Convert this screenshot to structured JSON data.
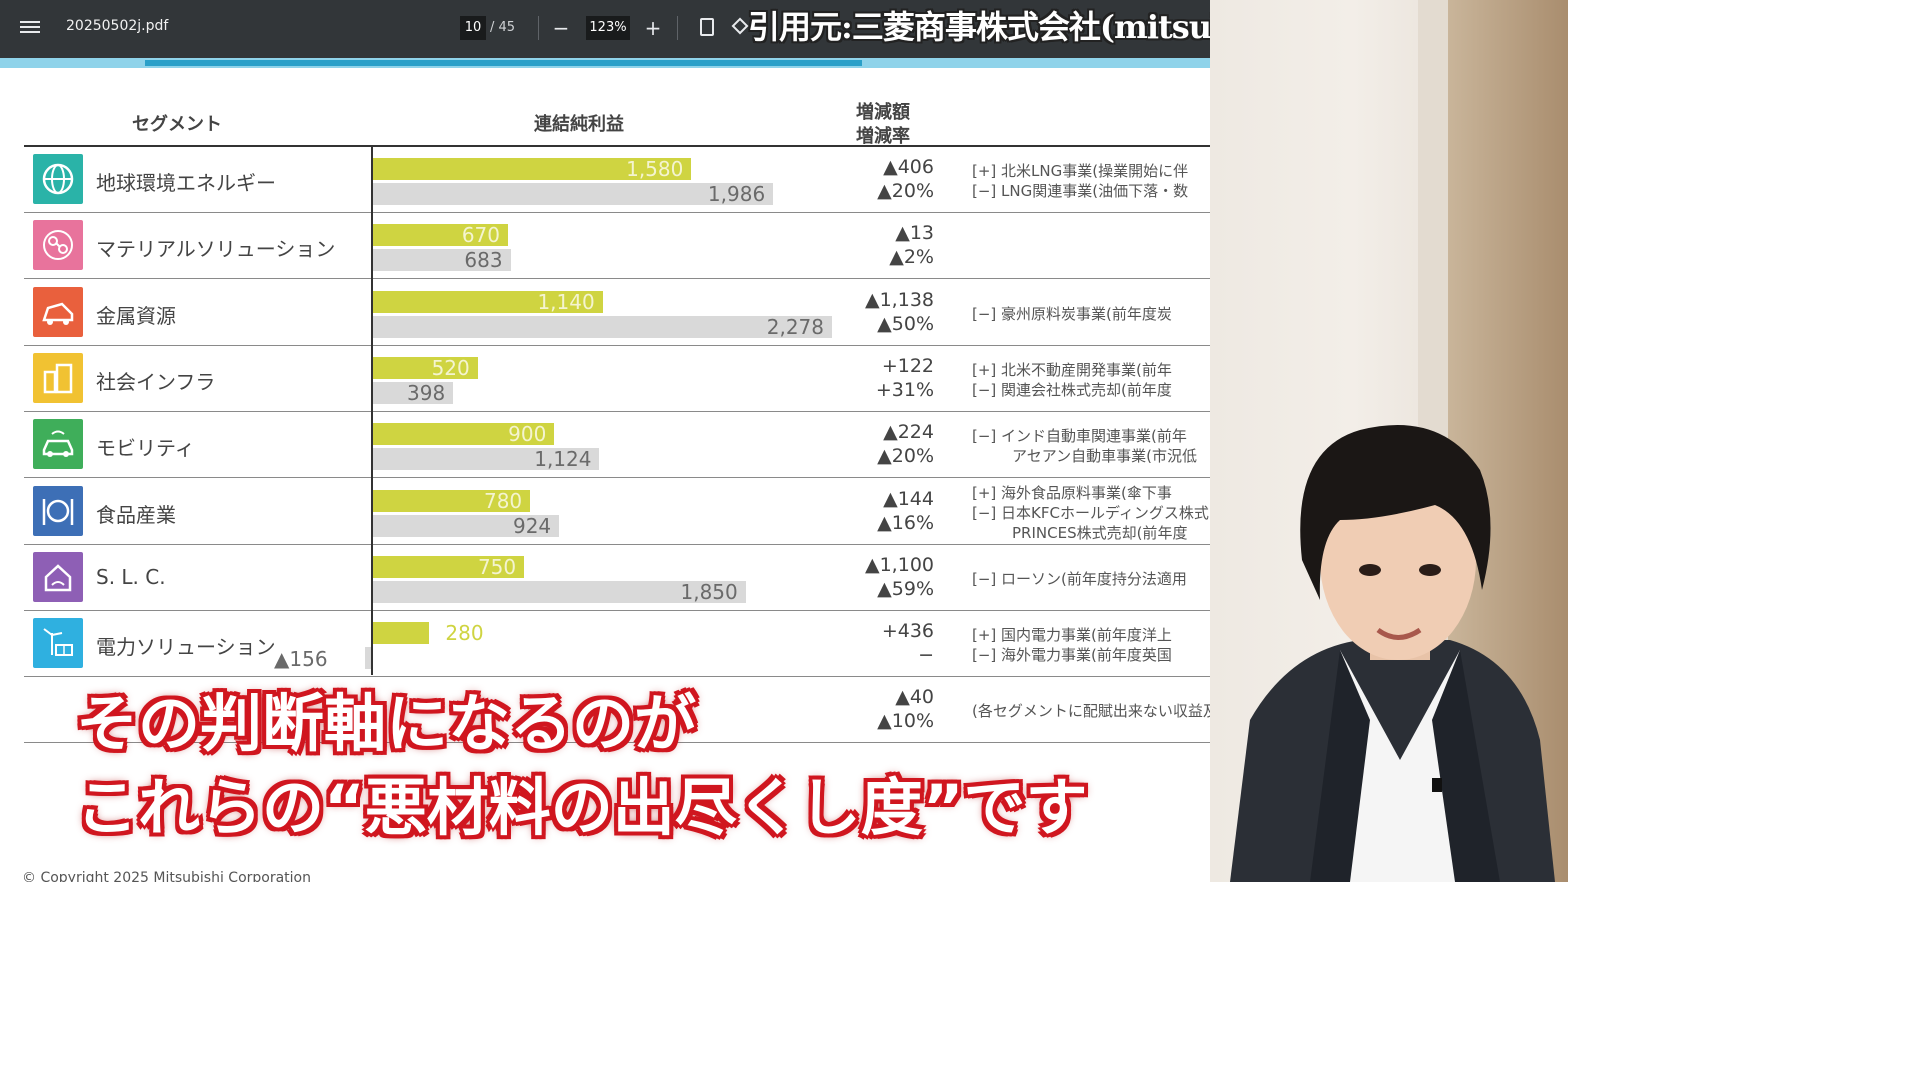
{
  "toolbar": {
    "filename": "20250502j.pdf",
    "page_current": "10",
    "page_total": "/ 45",
    "zoom": "123%",
    "zoom_out": "−",
    "zoom_in": "+"
  },
  "credit": "引用元:三菱商事株式会社(mitsubishicorp.com)",
  "table": {
    "col_segment": "セグメント",
    "col_profit": "連結純利益",
    "col_change_1": "増減額",
    "col_change_2": "増減率",
    "rows": [
      {
        "name": "地球環境エネルギー",
        "cur": "1,580",
        "prev": "1,986",
        "cur_value": 1580,
        "prev_value": 1986,
        "chg_amount": "▲406",
        "chg_rate": "▲20%",
        "note1": "[+] 北米LNG事業(操業開始に伴",
        "note2": "[−] LNG関連事業(油価下落・数",
        "color": "#2ab3a8",
        "icon": "globe-icon"
      },
      {
        "name": "マテリアルソリューション",
        "cur": "670",
        "prev": "683",
        "cur_value": 670,
        "prev_value": 683,
        "chg_amount": "▲13",
        "chg_rate": "▲2%",
        "note1": "",
        "note2": "",
        "color": "#e8739c",
        "icon": "molecule-icon"
      },
      {
        "name": "金属資源",
        "cur": "1,140",
        "prev": "2,278",
        "cur_value": 1140,
        "prev_value": 2278,
        "chg_amount": "▲1,138",
        "chg_rate": "▲50%",
        "note1": "[−] 豪州原料炭事業(前年度炭",
        "note2": "",
        "color": "#e9603d",
        "icon": "mining-truck-icon"
      },
      {
        "name": "社会インフラ",
        "cur": "520",
        "prev": "398",
        "cur_value": 520,
        "prev_value": 398,
        "chg_amount": "+122",
        "chg_rate": "+31%",
        "note1": "[+] 北米不動産開発事業(前年",
        "note2": "[−] 関連会社株式売却(前年度",
        "color": "#f1c232",
        "icon": "buildings-icon"
      },
      {
        "name": "モビリティ",
        "cur": "900",
        "prev": "1,124",
        "cur_value": 900,
        "prev_value": 1124,
        "chg_amount": "▲224",
        "chg_rate": "▲20%",
        "note1": "[−] インド自動車関連事業(前年",
        "note2": "アセアン自動車事業(市況低",
        "color": "#3fae5a",
        "icon": "car-icon"
      },
      {
        "name": "食品産業",
        "cur": "780",
        "prev": "924",
        "cur_value": 780,
        "prev_value": 924,
        "chg_amount": "▲144",
        "chg_rate": "▲16%",
        "note1": "[+] 海外食品原料事業(傘下事",
        "note2": "[−] 日本KFCホールディングス株式",
        "note3": "PRINCES株式売却(前年度",
        "color": "#3d6fb6",
        "icon": "cutlery-icon"
      },
      {
        "name": "S. L. C.",
        "cur": "750",
        "prev": "1,850",
        "cur_value": 750,
        "prev_value": 1850,
        "chg_amount": "▲1,100",
        "chg_rate": "▲59%",
        "note1": "[−] ローソン(前年度持分法適用",
        "note2": "",
        "color": "#8e5fb5",
        "icon": "home-hand-icon"
      },
      {
        "name": "電力ソリューション",
        "cur": "280",
        "prev": "▲156",
        "cur_value": 280,
        "prev_value": -156,
        "chg_amount": "+436",
        "chg_rate": "−",
        "note1": "[+] 国内電力事業(前年度洋上",
        "note2": "[−] 海外電力事業(前年度英国",
        "color": "#2fb0e0",
        "icon": "wind-solar-icon"
      },
      {
        "name": "",
        "cur": "",
        "prev": "",
        "cur_value": 0,
        "prev_value": 0,
        "chg_amount": "▲40",
        "chg_rate": "▲10%",
        "note1": "(各セグメントに配賦出来ない収益及",
        "note2": "",
        "color": "",
        "icon": ""
      }
    ]
  },
  "footer": "© Copyright 2025 Mitsubishi Corporation",
  "subtitle": {
    "line1": "その判断軸になるのが",
    "line2": "これらの“悪材料の出尽くし度”です"
  }
}
